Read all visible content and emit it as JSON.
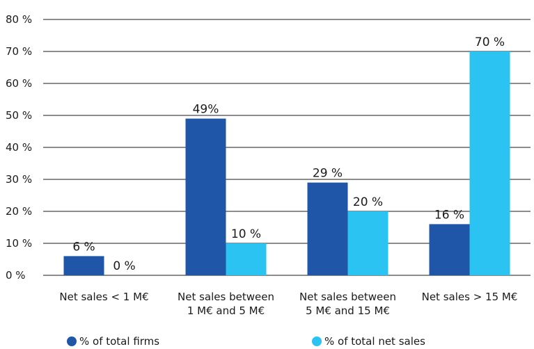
{
  "chart_data": {
    "type": "bar",
    "categories": [
      [
        "Net sales < 1 M€"
      ],
      [
        "Net sales between",
        "1 M€ and 5 M€"
      ],
      [
        "Net sales between",
        "5 M€ and 15 M€"
      ],
      [
        "Net sales > 15 M€"
      ]
    ],
    "series": [
      {
        "name": "% of total firms",
        "color": "#1f56a8",
        "values": [
          6,
          49,
          29,
          16
        ],
        "labels": [
          "6 %",
          "49%",
          "29 %",
          "16 %"
        ]
      },
      {
        "name": "% of total net sales",
        "color": "#2bc4f2",
        "values": [
          0,
          10,
          20,
          70
        ],
        "labels": [
          "0 %",
          "10 %",
          "20 %",
          "70 %"
        ]
      }
    ],
    "yticks": [
      "0 %",
      "10 %",
      "20 %",
      "30 %",
      "40 %",
      "50 %",
      "60 %",
      "70 %",
      "80 %"
    ],
    "ylim": [
      0,
      80
    ],
    "grid": true,
    "legend_position": "bottom"
  }
}
